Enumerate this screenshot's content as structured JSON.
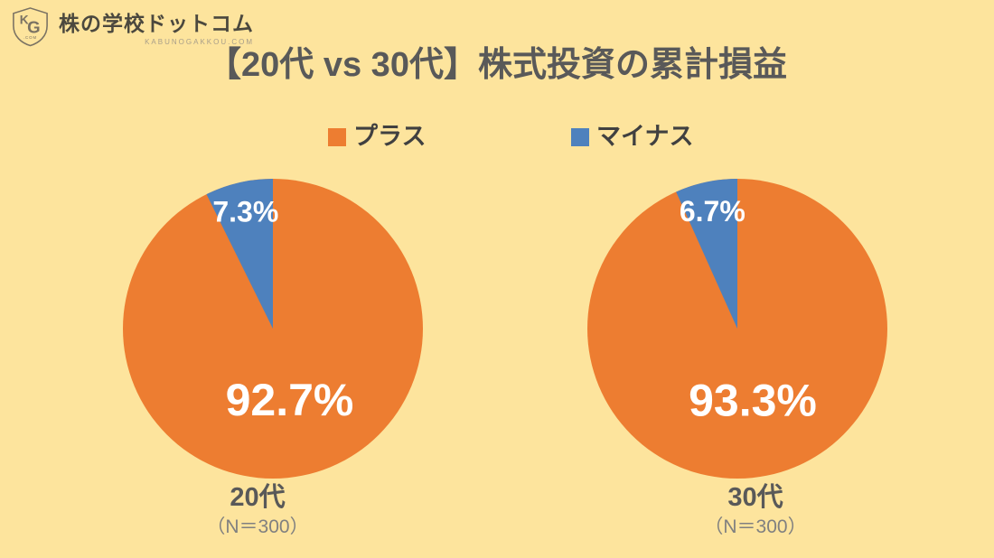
{
  "logo": {
    "name": "株の学校ドットコム",
    "domain": "KABUNOGAKKOU.COM",
    "monogram_top": "K",
    "monogram_bottom": "G",
    "monogram_sub": ".COM"
  },
  "title": "【20代 vs 30代】株式投資の累計損益",
  "legend": [
    {
      "label": "プラス",
      "color": "#ED7D31"
    },
    {
      "label": "マイナス",
      "color": "#4E81BD"
    }
  ],
  "colors": {
    "background": "#FDE49D",
    "plus": "#ED7D31",
    "minus": "#4E81BD",
    "title_text": "#595959",
    "caption_text": "#595959",
    "subcaption_text": "#808080",
    "value_label_text": "#FFFFFF"
  },
  "chart_data": [
    {
      "type": "pie",
      "title": "20代",
      "subtitle": "（N＝300）",
      "labels": [
        "プラス",
        "マイナス"
      ],
      "values": [
        92.7,
        7.3
      ],
      "value_labels": [
        "92.7%",
        "7.3%"
      ],
      "colors": [
        "#ED7D31",
        "#4E81BD"
      ],
      "start_angle_deg": 0,
      "direction": "clockwise",
      "legend_position": "top"
    },
    {
      "type": "pie",
      "title": "30代",
      "subtitle": "（N＝300）",
      "labels": [
        "プラス",
        "マイナス"
      ],
      "values": [
        93.3,
        6.7
      ],
      "value_labels": [
        "93.3%",
        "6.7%"
      ],
      "colors": [
        "#ED7D31",
        "#4E81BD"
      ],
      "start_angle_deg": 0,
      "direction": "clockwise",
      "legend_position": "top"
    }
  ]
}
